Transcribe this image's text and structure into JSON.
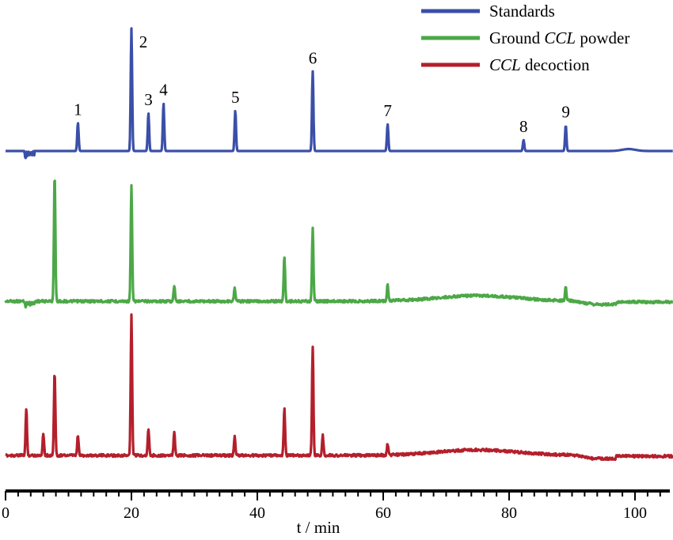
{
  "chart_data": {
    "type": "line",
    "title": "",
    "xlabel": "t / min",
    "ylabel": "",
    "xlim": [
      0,
      106
    ],
    "x_ticks": [
      0,
      20,
      40,
      60,
      80,
      100
    ],
    "x_tick_labels": [
      "0",
      "20",
      "40",
      "60",
      "80",
      "100"
    ],
    "grid": false,
    "legend_position": "top-right",
    "series": [
      {
        "name": "Standards",
        "name_parts": [
          {
            "text": "Standards",
            "italic": false
          }
        ],
        "color": "#3b4fa8",
        "peaks": [
          {
            "label": "1",
            "x": 11.5,
            "height": 0.23
          },
          {
            "label": "2",
            "x": 20.0,
            "height": 1.0
          },
          {
            "label": "3",
            "x": 22.7,
            "height": 0.31
          },
          {
            "label": "4",
            "x": 25.1,
            "height": 0.39
          },
          {
            "label": "5",
            "x": 36.5,
            "height": 0.33
          },
          {
            "label": "6",
            "x": 48.8,
            "height": 0.65
          },
          {
            "label": "7",
            "x": 60.7,
            "height": 0.22
          },
          {
            "label": "8",
            "x": 82.3,
            "height": 0.09
          },
          {
            "label": "9",
            "x": 89.0,
            "height": 0.21
          }
        ]
      },
      {
        "name": "Ground CCL powder",
        "name_parts": [
          {
            "text": "Ground ",
            "italic": false
          },
          {
            "text": "CCL",
            "italic": true
          },
          {
            "text": " powder",
            "italic": false
          }
        ],
        "color": "#4ca847",
        "peaks": [
          {
            "x": 7.8,
            "height": 1.0
          },
          {
            "x": 20.0,
            "height": 0.9
          },
          {
            "x": 44.3,
            "height": 0.35
          },
          {
            "x": 48.8,
            "height": 0.57
          },
          {
            "x": 60.7,
            "height": 0.13
          },
          {
            "x": 89.0,
            "height": 0.11
          },
          {
            "x": 26.8,
            "height": 0.12
          },
          {
            "x": 36.4,
            "height": 0.1
          }
        ]
      },
      {
        "name": "CCL decoction",
        "name_parts": [
          {
            "text": "CCL",
            "italic": true
          },
          {
            "text": " decoction",
            "italic": false
          }
        ],
        "color": "#b41f2b",
        "peaks": [
          {
            "x": 3.3,
            "height": 0.33
          },
          {
            "x": 6.0,
            "height": 0.16
          },
          {
            "x": 7.8,
            "height": 0.6
          },
          {
            "x": 11.5,
            "height": 0.14
          },
          {
            "x": 20.0,
            "height": 1.0
          },
          {
            "x": 22.7,
            "height": 0.19
          },
          {
            "x": 26.8,
            "height": 0.17
          },
          {
            "x": 36.4,
            "height": 0.13
          },
          {
            "x": 44.3,
            "height": 0.33
          },
          {
            "x": 48.8,
            "height": 0.78
          },
          {
            "x": 50.4,
            "height": 0.14
          },
          {
            "x": 60.7,
            "height": 0.08
          }
        ]
      }
    ]
  }
}
